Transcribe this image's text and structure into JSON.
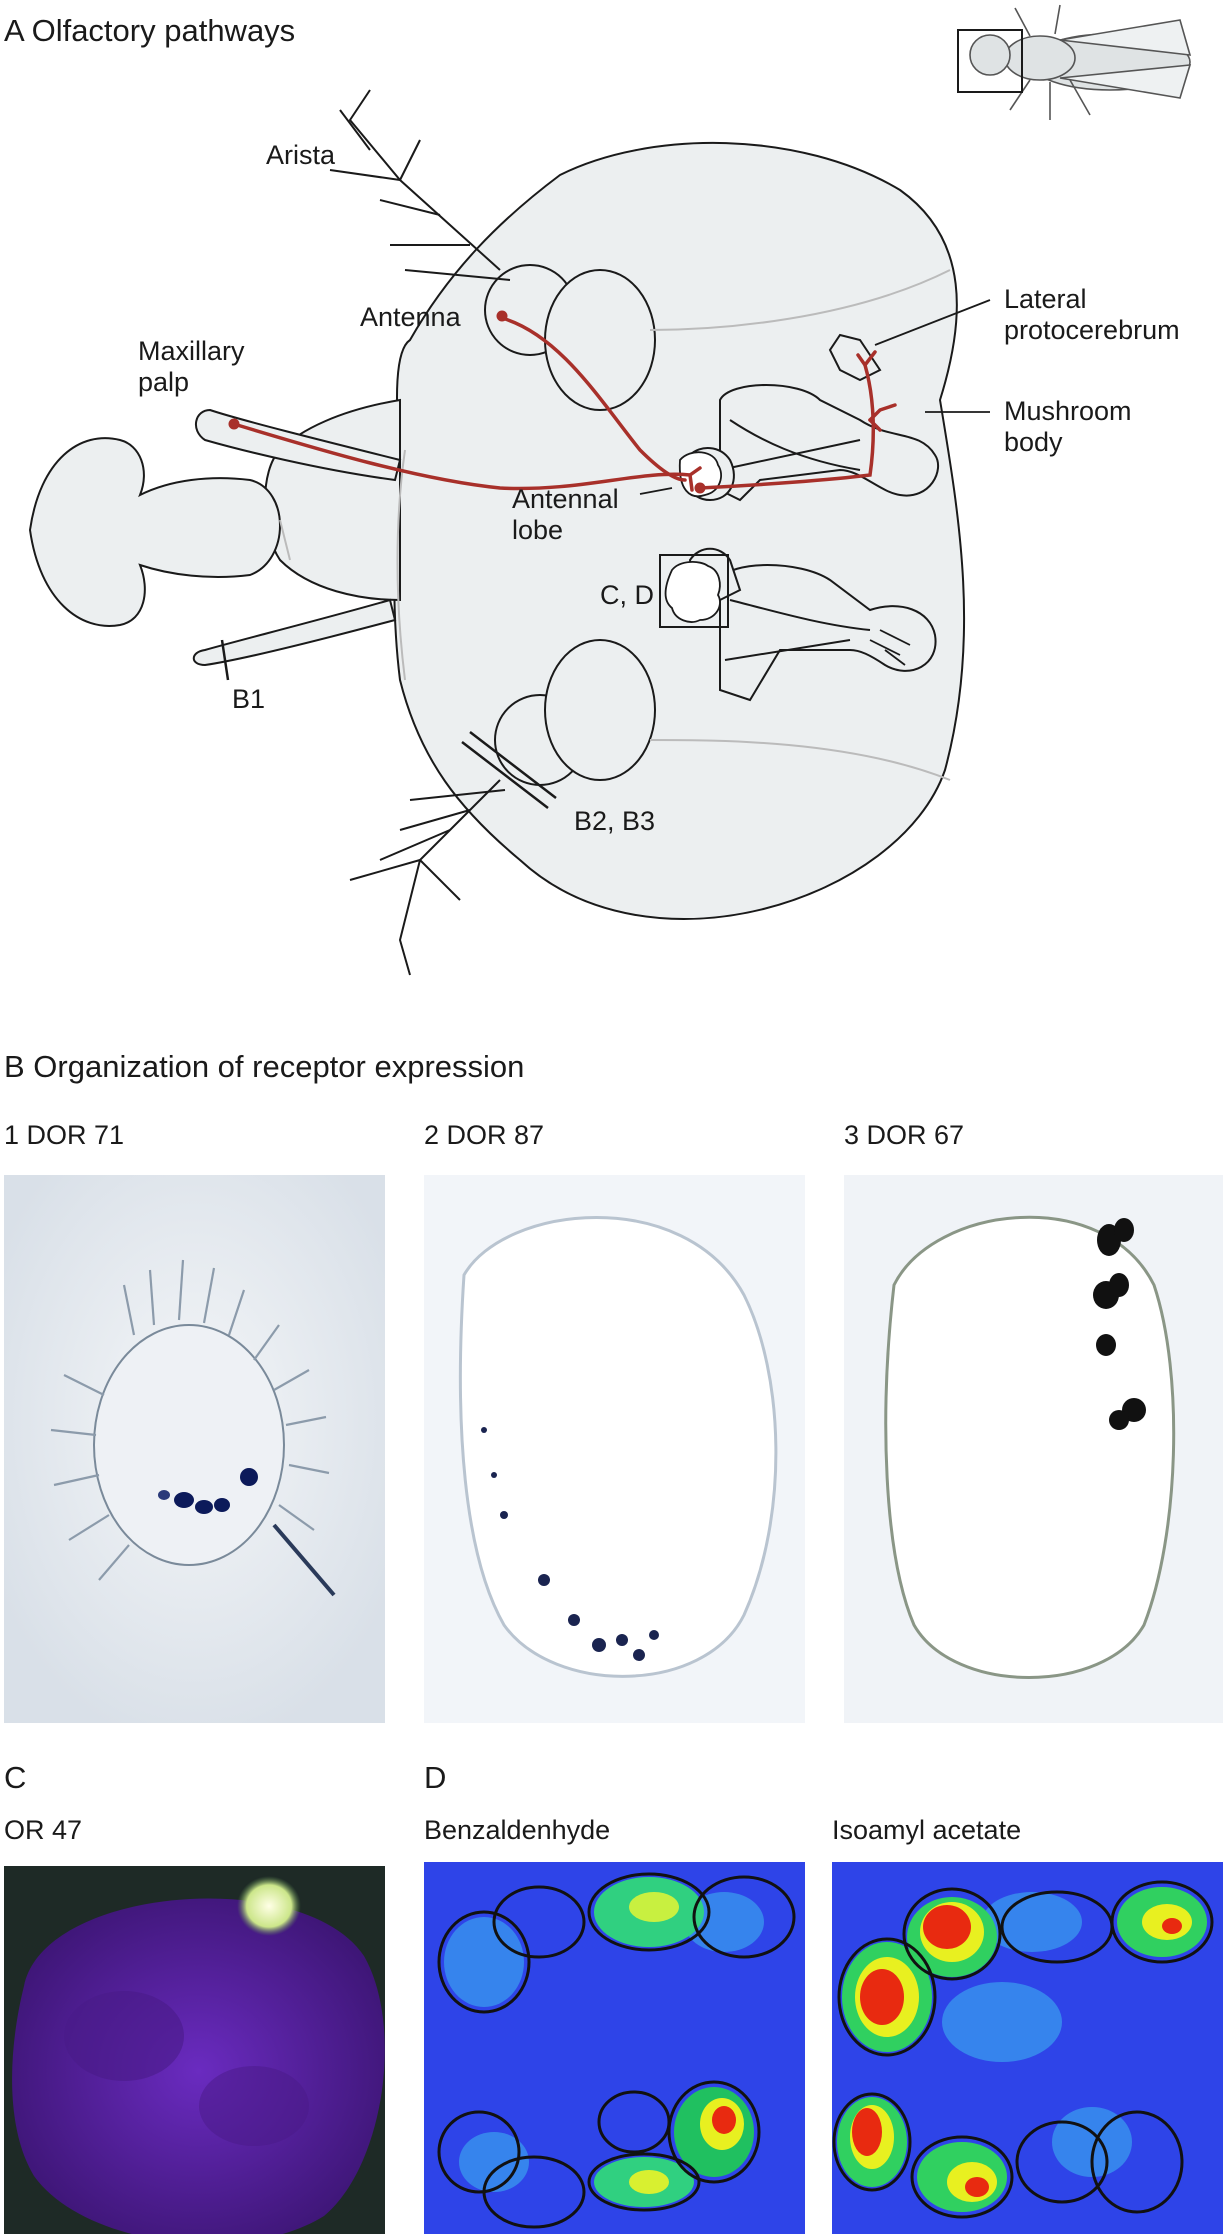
{
  "panel_a": {
    "heading": "A  Olfactory pathways",
    "labels": {
      "arista": "Arista",
      "antenna": "Antenna",
      "maxillary_palp": "Maxillary\npalp",
      "antennal_lobe": "Antennal\nlobe",
      "lateral_protocerebrum": "Lateral\nprotocerebrum",
      "mushroom_body": "Mushroom\nbody",
      "cd_box": "C, D",
      "b1": "B1",
      "b2b3": "B2, B3"
    }
  },
  "panel_b": {
    "heading": "B  Organization of receptor expression",
    "images": [
      {
        "label": "1  DOR 71"
      },
      {
        "label": "2  DOR 87"
      },
      {
        "label": "3  DOR 67"
      }
    ]
  },
  "panel_c": {
    "letter": "C",
    "label": "OR 47"
  },
  "panel_d": {
    "letter": "D",
    "images": [
      {
        "label": "Benzaldenhyde"
      },
      {
        "label": "Isoamyl acetate"
      }
    ]
  },
  "colors": {
    "pathway_red": "#a8302a",
    "tissue_fill": "#eceff0",
    "outline": "#1a1a1a"
  }
}
